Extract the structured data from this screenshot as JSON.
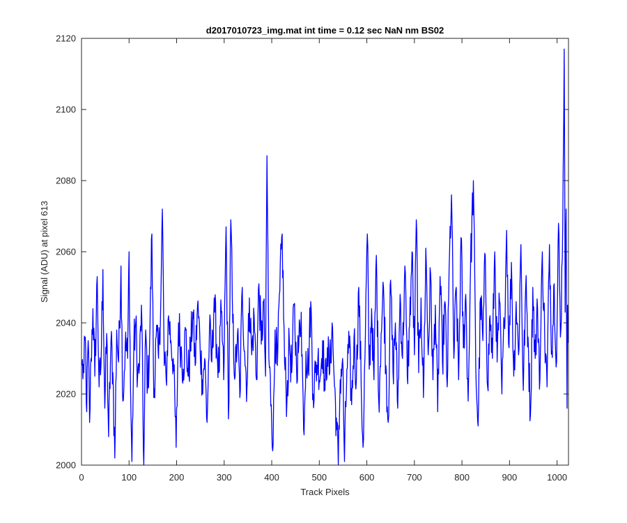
{
  "chart_data": {
    "type": "line",
    "title": "d2017010723_img.mat int time = 0.12 sec  NaN nm BS02",
    "xlabel": "Track Pixels",
    "ylabel": "Signal (ADU) at pixel 613",
    "xlim": [
      0,
      1024
    ],
    "ylim": [
      2000,
      2120
    ],
    "xticks": [
      0,
      100,
      200,
      300,
      400,
      500,
      600,
      700,
      800,
      900,
      1000
    ],
    "yticks": [
      2000,
      2020,
      2040,
      2060,
      2080,
      2100,
      2120
    ],
    "grid": false,
    "series": [
      {
        "color": "#0000ff",
        "x_start": 1,
        "x_step": 1,
        "approx_count": 1024,
        "description": "noisy signal trace; values below are a sampled approximation",
        "anchors": [
          [
            1,
            2028
          ],
          [
            5,
            2026
          ],
          [
            8,
            2036
          ],
          [
            11,
            2015
          ],
          [
            14,
            2035
          ],
          [
            17,
            2012
          ],
          [
            20,
            2030
          ],
          [
            24,
            2044
          ],
          [
            28,
            2025
          ],
          [
            33,
            2053
          ],
          [
            37,
            2022
          ],
          [
            41,
            2028
          ],
          [
            45,
            2055
          ],
          [
            49,
            2016
          ],
          [
            53,
            2037
          ],
          [
            57,
            2008
          ],
          [
            62,
            2035
          ],
          [
            66,
            2026
          ],
          [
            70,
            2002
          ],
          [
            74,
            2038
          ],
          [
            78,
            2029
          ],
          [
            83,
            2056
          ],
          [
            87,
            2018
          ],
          [
            92,
            2034
          ],
          [
            97,
            2030
          ],
          [
            100,
            2060
          ],
          [
            103,
            2022
          ],
          [
            106,
            2001
          ],
          [
            110,
            2033
          ],
          [
            114,
            2040
          ],
          [
            118,
            2025
          ],
          [
            122,
            2028
          ],
          [
            126,
            2045
          ],
          [
            131,
            2000
          ],
          [
            135,
            2038
          ],
          [
            139,
            2022
          ],
          [
            143,
            2033
          ],
          [
            148,
            2065
          ],
          [
            152,
            2019
          ],
          [
            157,
            2036
          ],
          [
            162,
            2030
          ],
          [
            167,
            2048
          ],
          [
            170,
            2072
          ],
          [
            174,
            2028
          ],
          [
            178,
            2024
          ],
          [
            183,
            2042
          ],
          [
            188,
            2035
          ],
          [
            193,
            2030
          ],
          [
            199,
            2005
          ],
          [
            204,
            2040
          ],
          [
            209,
            2033
          ],
          [
            214,
            2027
          ],
          [
            219,
            2038
          ],
          [
            224,
            2025
          ],
          [
            229,
            2032
          ],
          [
            234,
            2043
          ],
          [
            239,
            2028
          ],
          [
            244,
            2045
          ],
          [
            249,
            2035
          ],
          [
            254,
            2024
          ],
          [
            259,
            2030
          ],
          [
            264,
            2012
          ],
          [
            269,
            2038
          ],
          [
            274,
            2029
          ],
          [
            279,
            2047
          ],
          [
            284,
            2034
          ],
          [
            289,
            2026
          ],
          [
            294,
            2043
          ],
          [
            299,
            2024
          ],
          [
            304,
            2067
          ],
          [
            309,
            2013
          ],
          [
            314,
            2069
          ],
          [
            318,
            2040
          ],
          [
            323,
            2025
          ],
          [
            328,
            2037
          ],
          [
            333,
            2019
          ],
          [
            338,
            2050
          ],
          [
            343,
            2032
          ],
          [
            348,
            2022
          ],
          [
            353,
            2047
          ],
          [
            358,
            2031
          ],
          [
            363,
            2042
          ],
          [
            368,
            2024
          ],
          [
            373,
            2051
          ],
          [
            378,
            2034
          ],
          [
            383,
            2046
          ],
          [
            387,
            2025
          ],
          [
            390,
            2087
          ],
          [
            394,
            2030
          ],
          [
            399,
            2017
          ],
          [
            403,
            2006
          ],
          [
            407,
            2038
          ],
          [
            412,
            2028
          ],
          [
            417,
            2049
          ],
          [
            422,
            2065
          ],
          [
            427,
            2029
          ],
          [
            432,
            2018
          ],
          [
            437,
            2035
          ],
          [
            442,
            2026
          ],
          [
            447,
            2045
          ],
          [
            452,
            2028
          ],
          [
            457,
            2034
          ],
          [
            462,
            2043
          ],
          [
            467,
            2010
          ],
          [
            472,
            2032
          ],
          [
            477,
            2027
          ],
          [
            482,
            2046
          ],
          [
            487,
            2020
          ],
          [
            492,
            2026
          ],
          [
            497,
            2030
          ],
          [
            502,
            2025
          ],
          [
            507,
            2035
          ],
          [
            512,
            2021
          ],
          [
            517,
            2033
          ],
          [
            522,
            2026
          ],
          [
            527,
            2040
          ],
          [
            532,
            2022
          ],
          [
            537,
            2010
          ],
          [
            540,
            2000
          ],
          [
            544,
            2024
          ],
          [
            549,
            2030
          ],
          [
            553,
            2001
          ],
          [
            558,
            2027
          ],
          [
            563,
            2033
          ],
          [
            568,
            2017
          ],
          [
            573,
            2036
          ],
          [
            578,
            2024
          ],
          [
            583,
            2050
          ],
          [
            588,
            2023
          ],
          [
            592,
            2005
          ],
          [
            596,
            2030
          ],
          [
            601,
            2065
          ],
          [
            605,
            2027
          ],
          [
            610,
            2044
          ],
          [
            615,
            2024
          ],
          [
            620,
            2059
          ],
          [
            625,
            2018
          ],
          [
            630,
            2037
          ],
          [
            635,
            2050
          ],
          [
            640,
            2028
          ],
          [
            645,
            2012
          ],
          [
            650,
            2052
          ],
          [
            655,
            2026
          ],
          [
            660,
            2040
          ],
          [
            665,
            2016
          ],
          [
            670,
            2048
          ],
          [
            675,
            2030
          ],
          [
            680,
            2056
          ],
          [
            685,
            2025
          ],
          [
            690,
            2039
          ],
          [
            695,
            2060
          ],
          [
            700,
            2031
          ],
          [
            704,
            2069
          ],
          [
            709,
            2026
          ],
          [
            714,
            2047
          ],
          [
            719,
            2019
          ],
          [
            724,
            2061
          ],
          [
            729,
            2031
          ],
          [
            734,
            2054
          ],
          [
            739,
            2024
          ],
          [
            744,
            2045
          ],
          [
            749,
            2015
          ],
          [
            754,
            2053
          ],
          [
            759,
            2029
          ],
          [
            764,
            2046
          ],
          [
            769,
            2022
          ],
          [
            774,
            2060
          ],
          [
            778,
            2076
          ],
          [
            783,
            2030
          ],
          [
            788,
            2050
          ],
          [
            793,
            2024
          ],
          [
            798,
            2064
          ],
          [
            803,
            2033
          ],
          [
            808,
            2048
          ],
          [
            813,
            2018
          ],
          [
            818,
            2055
          ],
          [
            824,
            2080
          ],
          [
            829,
            2028
          ],
          [
            834,
            2011
          ],
          [
            839,
            2047
          ],
          [
            844,
            2035
          ],
          [
            849,
            2059
          ],
          [
            854,
            2022
          ],
          [
            859,
            2042
          ],
          [
            864,
            2030
          ],
          [
            869,
            2060
          ],
          [
            874,
            2029
          ],
          [
            879,
            2046
          ],
          [
            884,
            2020
          ],
          [
            889,
            2040
          ],
          [
            894,
            2066
          ],
          [
            899,
            2033
          ],
          [
            904,
            2057
          ],
          [
            909,
            2025
          ],
          [
            914,
            2046
          ],
          [
            919,
            2031
          ],
          [
            924,
            2062
          ],
          [
            929,
            2021
          ],
          [
            934,
            2050
          ],
          [
            939,
            2036
          ],
          [
            944,
            2014
          ],
          [
            949,
            2050
          ],
          [
            954,
            2030
          ],
          [
            959,
            2044
          ],
          [
            964,
            2024
          ],
          [
            969,
            2060
          ],
          [
            974,
            2036
          ],
          [
            979,
            2022
          ],
          [
            984,
            2062
          ],
          [
            989,
            2032
          ],
          [
            994,
            2051
          ],
          [
            999,
            2029
          ],
          [
            1003,
            2068
          ],
          [
            1007,
            2036
          ],
          [
            1011,
            2058
          ],
          [
            1015,
            2117
          ],
          [
            1017,
            2043
          ],
          [
            1019,
            2072
          ],
          [
            1021,
            2016
          ],
          [
            1022,
            2045
          ],
          [
            1024,
            2036
          ]
        ]
      }
    ]
  }
}
